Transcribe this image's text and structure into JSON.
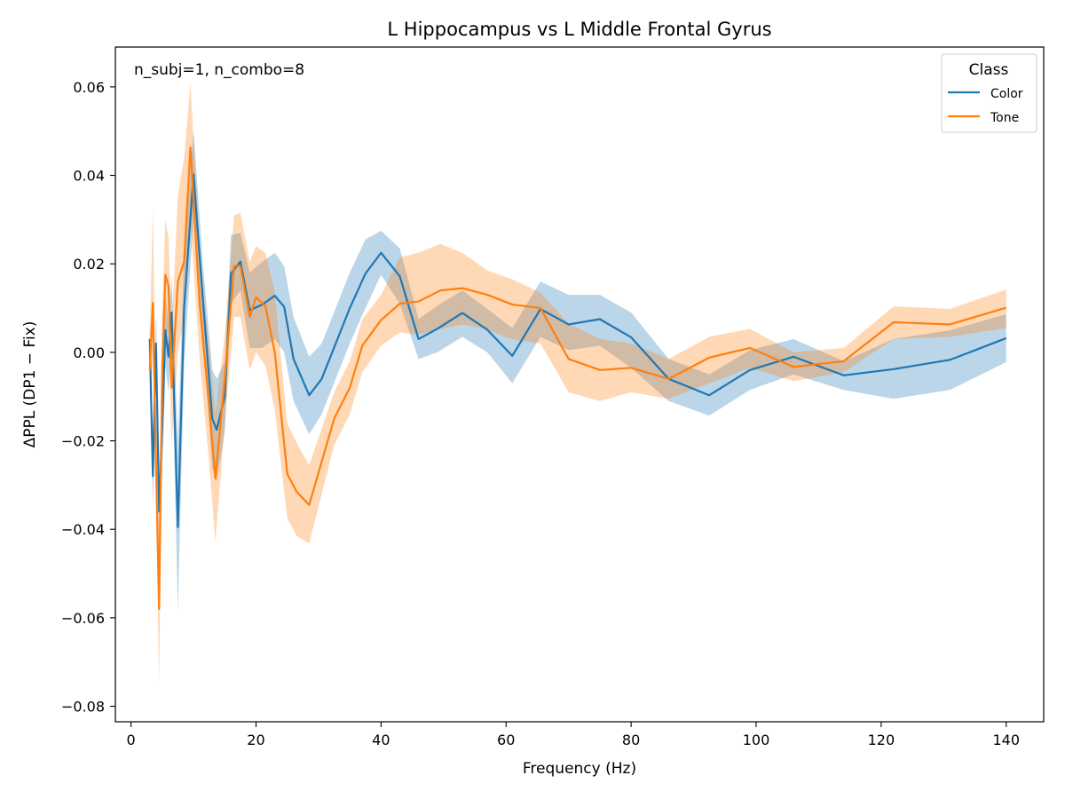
{
  "chart_data": {
    "type": "line",
    "title": "L Hippocampus vs L Middle Frontal Gyrus",
    "xlabel": "Frequency (Hz)",
    "ylabel": "ΔPPL (DP1 − Fix)",
    "annotation": "n_subj=1, n_combo=8",
    "xlim": [
      -2.5,
      146
    ],
    "ylim": [
      -0.0835,
      0.069
    ],
    "xticks": [
      0,
      20,
      40,
      60,
      80,
      100,
      120,
      140
    ],
    "xtick_labels": [
      "0",
      "20",
      "40",
      "60",
      "80",
      "100",
      "120",
      "140"
    ],
    "yticks": [
      -0.08,
      -0.06,
      -0.04,
      -0.02,
      0.0,
      0.02,
      0.04,
      0.06
    ],
    "ytick_labels": [
      "−0.08",
      "−0.06",
      "−0.04",
      "−0.02",
      "0.00",
      "0.02",
      "0.04",
      "0.06"
    ],
    "grid": false,
    "legend": {
      "title": "Class",
      "position": "top-right",
      "entries": [
        "Color",
        "Tone"
      ]
    },
    "series": [
      {
        "name": "Color",
        "color": "#1f77b4",
        "x": [
          3.0,
          3.5,
          4.0,
          4.5,
          5.0,
          5.5,
          6.0,
          6.5,
          7.5,
          8.5,
          10.0,
          11.5,
          13.0,
          13.7,
          15.0,
          16.0,
          17.5,
          19.0,
          21.0,
          23.0,
          24.5,
          26.0,
          28.5,
          30.5,
          35.0,
          37.5,
          40.0,
          43.0,
          46.0,
          49.0,
          53.0,
          57.0,
          61.0,
          65.5,
          70.0,
          75.0,
          80.0,
          86.0,
          92.5,
          99.0,
          106.0,
          114.0,
          122.0,
          131.0,
          140.0
        ],
        "y": [
          0.003,
          -0.028,
          0.002,
          -0.036,
          -0.017,
          0.005,
          -0.001,
          0.009,
          -0.0395,
          0.01,
          0.0402,
          0.012,
          -0.015,
          -0.0175,
          -0.01,
          0.0178,
          0.0205,
          0.0095,
          0.0108,
          0.0128,
          0.0103,
          -0.0015,
          -0.0097,
          -0.006,
          0.01,
          0.0178,
          0.0225,
          0.0172,
          0.003,
          0.0053,
          0.0089,
          0.0051,
          -0.0008,
          0.0098,
          0.0063,
          0.0075,
          0.0034,
          -0.006,
          -0.0097,
          -0.004,
          -0.001,
          -0.0052,
          -0.0038,
          -0.0017,
          0.0032
        ],
        "y_lower": [
          -0.003,
          -0.035,
          -0.005,
          -0.045,
          -0.027,
          -0.003,
          -0.009,
          0.001,
          -0.0585,
          -0.003,
          0.0305,
          0.004,
          -0.026,
          -0.029,
          -0.018,
          0.011,
          0.014,
          0.001,
          0.001,
          0.003,
          0.0,
          -0.011,
          -0.0185,
          -0.014,
          0.002,
          0.01,
          0.0175,
          0.011,
          -0.0015,
          0.0,
          0.0035,
          0.0,
          -0.007,
          0.0035,
          0.0005,
          0.0015,
          -0.0035,
          -0.011,
          -0.0143,
          -0.0085,
          -0.005,
          -0.0085,
          -0.0105,
          -0.0085,
          -0.0022
        ],
        "y_upper": [
          0.009,
          -0.021,
          0.009,
          -0.027,
          -0.007,
          0.013,
          0.007,
          0.017,
          -0.0205,
          0.023,
          0.05,
          0.02,
          -0.004,
          -0.006,
          -0.002,
          0.0265,
          0.027,
          0.018,
          0.0205,
          0.0225,
          0.0195,
          0.008,
          -0.001,
          0.002,
          0.018,
          0.0255,
          0.0275,
          0.0235,
          0.0075,
          0.0105,
          0.014,
          0.0098,
          0.0055,
          0.016,
          0.013,
          0.013,
          0.009,
          -0.0015,
          -0.005,
          0.0005,
          0.003,
          -0.002,
          0.003,
          0.005,
          0.0086
        ]
      },
      {
        "name": "Tone",
        "color": "#ff7f0e",
        "x": [
          3.0,
          3.5,
          4.0,
          4.5,
          5.0,
          5.5,
          6.0,
          6.5,
          7.5,
          8.5,
          9.5,
          11.0,
          12.5,
          13.5,
          15.0,
          16.5,
          17.5,
          19.0,
          20.0,
          21.5,
          23.0,
          25.0,
          26.5,
          28.5,
          32.5,
          35.0,
          37.0,
          40.0,
          43.0,
          46.0,
          49.5,
          53.0,
          57.0,
          61.0,
          65.5,
          70.0,
          75.0,
          80.0,
          86.0,
          92.5,
          99.0,
          106.0,
          114.0,
          122.0,
          131.0,
          140.0
        ],
        "y": [
          -0.004,
          0.0112,
          -0.025,
          -0.058,
          -0.003,
          0.0175,
          0.015,
          -0.008,
          0.016,
          0.0205,
          0.0463,
          0.0105,
          -0.012,
          -0.0285,
          -0.006,
          0.0195,
          0.0195,
          0.008,
          0.0124,
          0.0105,
          0.0,
          -0.0275,
          -0.0315,
          -0.0345,
          -0.015,
          -0.008,
          0.0015,
          0.0073,
          0.011,
          0.0115,
          0.014,
          0.0145,
          0.013,
          0.0108,
          0.01,
          -0.0015,
          -0.004,
          -0.0035,
          -0.006,
          -0.0012,
          0.001,
          -0.0033,
          -0.002,
          0.0068,
          0.0063,
          0.0101
        ],
        "y_lower": [
          -0.012,
          0.0,
          -0.035,
          -0.075,
          -0.015,
          0.005,
          0.004,
          -0.021,
          0.0,
          0.008,
          0.03,
          -0.002,
          -0.025,
          -0.043,
          -0.016,
          0.008,
          0.008,
          -0.004,
          0.0,
          -0.003,
          -0.013,
          -0.0375,
          -0.0415,
          -0.0432,
          -0.021,
          -0.014,
          -0.0045,
          0.0015,
          0.0045,
          0.004,
          0.0053,
          0.0063,
          0.0052,
          0.0029,
          0.002,
          -0.009,
          -0.011,
          -0.009,
          -0.0105,
          -0.007,
          -0.0035,
          -0.0065,
          -0.0045,
          0.003,
          0.0035,
          0.0055
        ],
        "y_upper": [
          0.004,
          0.0325,
          -0.015,
          -0.043,
          0.009,
          0.03,
          0.026,
          0.005,
          0.0355,
          0.044,
          0.061,
          0.023,
          0.001,
          -0.014,
          0.004,
          0.031,
          0.0315,
          0.0205,
          0.024,
          0.0225,
          0.0135,
          -0.016,
          -0.0205,
          -0.0255,
          -0.009,
          -0.002,
          0.0075,
          0.013,
          0.0215,
          0.0225,
          0.0245,
          0.0225,
          0.0185,
          0.0165,
          0.0135,
          0.0065,
          0.003,
          0.002,
          -0.0015,
          0.0035,
          0.0053,
          0.0,
          0.001,
          0.0104,
          0.0098,
          0.0142
        ]
      }
    ]
  }
}
